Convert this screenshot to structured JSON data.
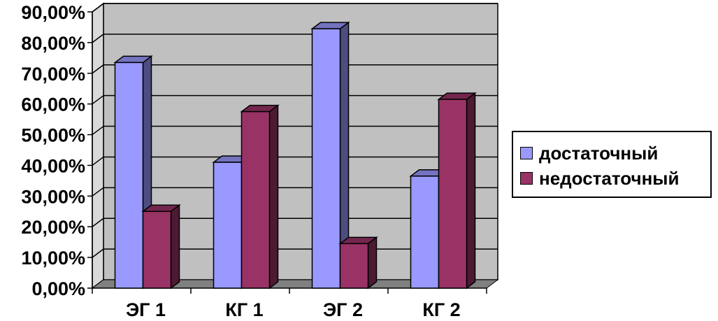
{
  "chart_data": {
    "type": "bar",
    "categories": [
      "ЭГ 1",
      "КГ 1",
      "ЭГ 2",
      "КГ 2"
    ],
    "series": [
      {
        "name": "достаточный",
        "values": [
          73.5,
          41.0,
          84.5,
          36.5
        ],
        "color": "#9999ff",
        "side_color": "#4d4d80",
        "top_color": "#7373bf"
      },
      {
        "name": "недостаточный",
        "values": [
          25.0,
          57.5,
          14.5,
          61.5
        ],
        "color": "#993366",
        "side_color": "#4d1a33",
        "top_color": "#73264d"
      }
    ],
    "y_ticks": [
      "0,00%",
      "10,00%",
      "20,00%",
      "30,00%",
      "40,00%",
      "50,00%",
      "60,00%",
      "70,00%",
      "80,00%",
      "90,00%"
    ],
    "ylim": [
      0,
      90
    ],
    "grid": true,
    "legend_position": "right",
    "wall_color": "#c0c0c0",
    "floor_color": "#808080"
  }
}
